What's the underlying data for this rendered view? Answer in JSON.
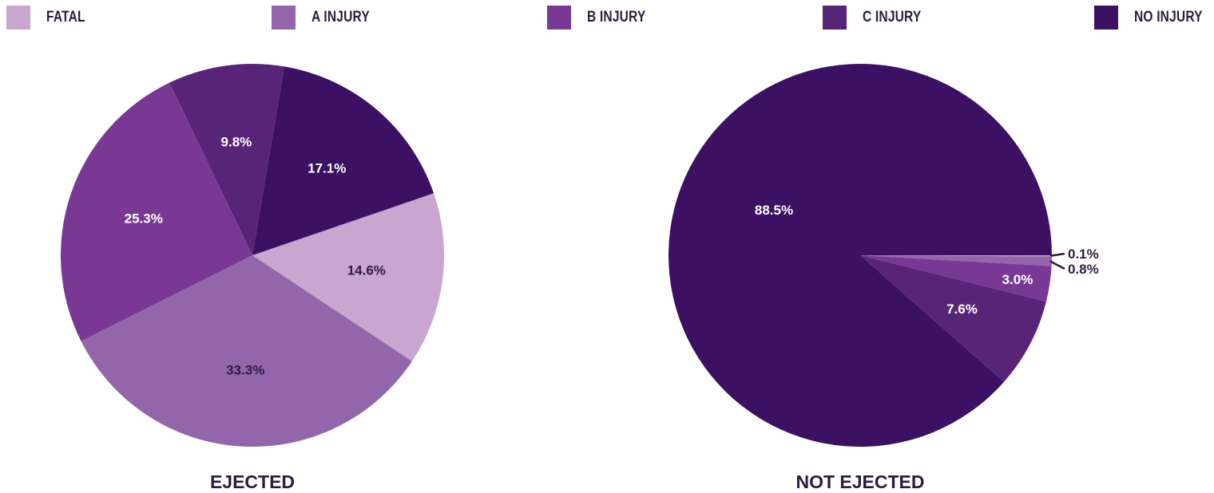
{
  "legend": {
    "items": [
      {
        "label": "FATAL",
        "color": "#c8a6cf"
      },
      {
        "label": "A INJURY",
        "color": "#9366ab"
      },
      {
        "label": "B INJURY",
        "color": "#7a3895"
      },
      {
        "label": "C INJURY",
        "color": "#582478"
      },
      {
        "label": "NO INJURY",
        "color": "#3c1062"
      }
    ]
  },
  "chart_data": [
    {
      "type": "pie",
      "title": "EJECTED",
      "categories": [
        "FATAL",
        "A INJURY",
        "B INJURY",
        "C INJURY",
        "NO INJURY"
      ],
      "values": [
        14.6,
        33.3,
        25.3,
        9.8,
        17.1
      ],
      "labels": [
        "14.6%",
        "33.3%",
        "25.3%",
        "9.8%",
        "17.1%"
      ],
      "colors": [
        "#c8a6cf",
        "#9366ab",
        "#7a3895",
        "#582478",
        "#3c1062"
      ],
      "label_colors": [
        "#2e1a3e",
        "#2e1a3e",
        "#ffffff",
        "#ffffff",
        "#ffffff"
      ]
    },
    {
      "type": "pie",
      "title": "NOT EJECTED",
      "categories": [
        "FATAL",
        "A INJURY",
        "B INJURY",
        "C INJURY",
        "NO INJURY"
      ],
      "values": [
        0.1,
        0.8,
        3.0,
        7.6,
        88.5
      ],
      "labels": [
        "0.1%",
        "0.8%",
        "3.0%",
        "7.6%",
        "88.5%"
      ],
      "colors": [
        "#c8a6cf",
        "#9366ab",
        "#7a3895",
        "#582478",
        "#3c1062"
      ],
      "label_colors": [
        "#2e1a3e",
        "#2e1a3e",
        "#ffffff",
        "#ffffff",
        "#ffffff"
      ],
      "outside_labels": [
        "0.1%",
        "0.8%"
      ]
    }
  ]
}
